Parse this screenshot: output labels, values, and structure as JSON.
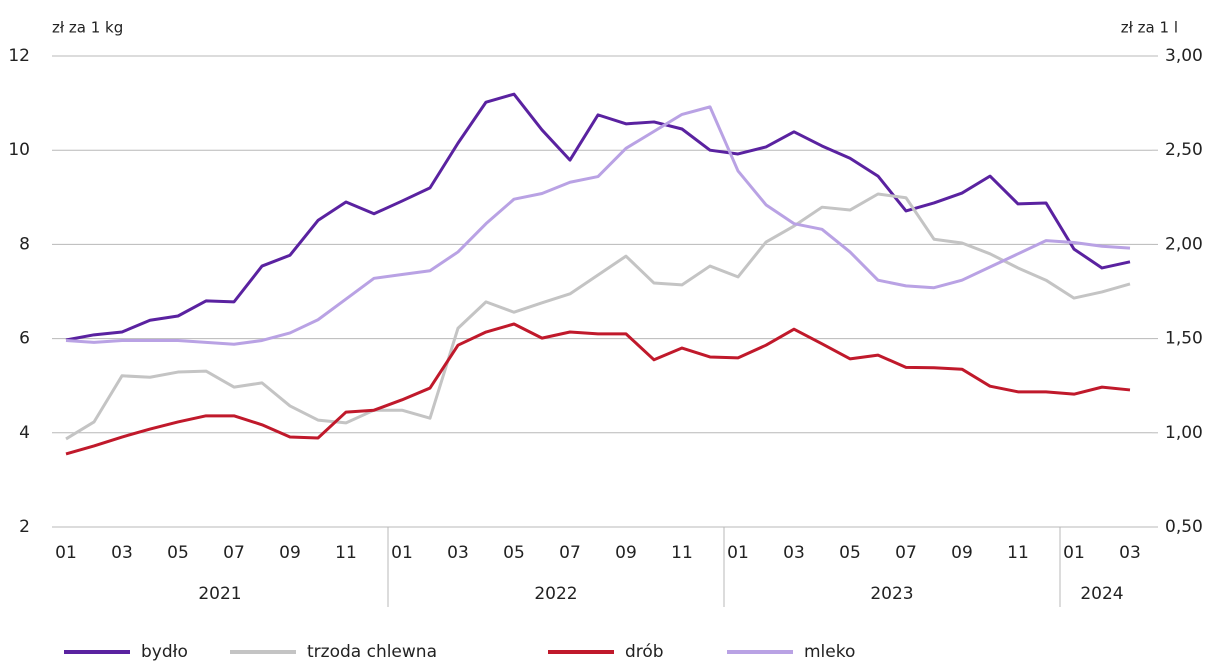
{
  "chart_data": {
    "type": "line",
    "ylabel": "zł za 1 kg",
    "y2label": "zł za 1 l",
    "categories": [
      "01",
      null,
      "03",
      null,
      "05",
      null,
      "07",
      null,
      "09",
      null,
      "11",
      null,
      "01",
      null,
      "03",
      null,
      "05",
      null,
      "07",
      null,
      "09",
      null,
      "11",
      null,
      "01",
      null,
      "03",
      null,
      "05",
      null,
      "07",
      null,
      "09",
      null,
      "11",
      null,
      "01",
      null,
      "03"
    ],
    "years": [
      "2021",
      "2022",
      "2023",
      "2024"
    ],
    "ylim": [
      2,
      12
    ],
    "yticks": [
      2,
      4,
      6,
      8,
      10,
      12
    ],
    "y2lim": [
      0.5,
      3
    ],
    "y2ticks": [
      {
        "value": 0.5,
        "label": "0,50"
      },
      {
        "value": 1,
        "label": "1,00"
      },
      {
        "value": 1.5,
        "label": "1,50"
      },
      {
        "value": 2,
        "label": "2,00"
      },
      {
        "value": 2.5,
        "label": "2,50"
      },
      {
        "value": 3,
        "label": "3,00"
      }
    ],
    "grid": true,
    "legend": "bottom",
    "series": [
      {
        "name": "bydło",
        "color": "#5a22a0",
        "values": [
          5.97,
          6.08,
          6.14,
          6.39,
          6.48,
          6.8,
          6.78,
          7.54,
          7.77,
          8.51,
          8.9,
          8.65,
          8.92,
          9.2,
          10.15,
          11.02,
          11.19,
          10.43,
          9.79,
          10.75,
          10.56,
          10.6,
          10.45,
          10.0,
          9.92,
          10.07,
          10.39,
          10.09,
          9.83,
          9.45,
          8.71,
          8.88,
          9.09,
          9.45,
          8.86,
          8.88,
          7.9,
          7.5,
          7.63
        ]
      },
      {
        "name": "trzoda chlewna",
        "color": "#c4c4c4",
        "values": [
          3.87,
          4.23,
          5.21,
          5.18,
          5.29,
          5.31,
          4.97,
          5.06,
          4.57,
          4.27,
          4.21,
          4.48,
          4.48,
          4.31,
          6.22,
          6.78,
          6.56,
          6.76,
          6.95,
          7.35,
          7.75,
          7.18,
          7.14,
          7.54,
          7.31,
          8.05,
          8.39,
          8.79,
          8.73,
          9.07,
          8.99,
          8.11,
          8.03,
          7.8,
          7.5,
          7.24,
          6.86,
          6.99,
          7.16
        ]
      },
      {
        "name": "drób",
        "color": "#c0192b",
        "values": [
          3.55,
          3.72,
          3.91,
          4.08,
          4.23,
          4.36,
          4.36,
          4.17,
          3.91,
          3.89,
          4.44,
          4.48,
          4.7,
          4.95,
          5.86,
          6.14,
          6.31,
          6.01,
          6.14,
          6.1,
          6.1,
          5.55,
          5.8,
          5.61,
          5.59,
          5.86,
          6.2,
          5.89,
          5.57,
          5.65,
          5.39,
          5.38,
          5.35,
          4.99,
          4.87,
          4.87,
          4.82,
          4.97,
          4.91
        ]
      },
      {
        "name": "mleko",
        "color": "#b9a2e4",
        "axis": "y2",
        "values": [
          1.49,
          1.48,
          1.49,
          1.49,
          1.49,
          1.48,
          1.47,
          1.49,
          1.53,
          1.6,
          1.71,
          1.82,
          1.84,
          1.86,
          1.96,
          2.11,
          2.24,
          2.27,
          2.33,
          2.36,
          2.51,
          2.6,
          2.69,
          2.73,
          2.39,
          2.21,
          2.11,
          2.08,
          1.96,
          1.81,
          1.78,
          1.77,
          1.81,
          1.88,
          1.95,
          2.02,
          2.01,
          1.99,
          1.98
        ]
      }
    ]
  }
}
